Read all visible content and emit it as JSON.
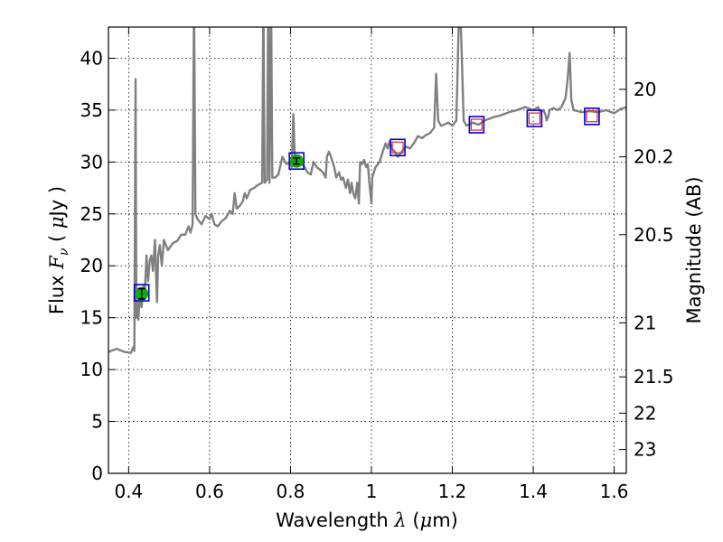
{
  "chart_data": {
    "type": "line",
    "title": "",
    "xlabel": "Wavelength  λ (μm)",
    "xlabel_parts": {
      "prefix": "Wavelength  ",
      "symbol": "λ",
      "suffix": " (",
      "mu": "μ",
      "unit": "m)"
    },
    "ylabel": "Flux  Fν  ( μJy )",
    "ylabel_parts": {
      "prefix": "Flux  ",
      "symbol": "F",
      "sub": "ν",
      "open": "  ( ",
      "mu": "μ",
      "unit": "Jy )"
    },
    "y2label": "Magnitude (AB)",
    "xlim": [
      0.35,
      1.63
    ],
    "ylim": [
      0,
      43
    ],
    "xticks": [
      0.4,
      0.6,
      0.8,
      1.0,
      1.2,
      1.4,
      1.6
    ],
    "xtick_labels": [
      "0.4",
      "0.6",
      "0.8",
      "1",
      "1.2",
      "1.4",
      "1.6"
    ],
    "yticks": [
      0,
      5,
      10,
      15,
      20,
      25,
      30,
      35,
      40
    ],
    "ytick_labels": [
      "0",
      "5",
      "10",
      "15",
      "20",
      "25",
      "30",
      "35",
      "40"
    ],
    "y2ticks": [
      {
        "label": "20",
        "flux": 37.0
      },
      {
        "label": "20.2",
        "flux": 30.5
      },
      {
        "label": "20.5",
        "flux": 23.0
      },
      {
        "label": "21",
        "flux": 14.5
      },
      {
        "label": "21.5",
        "flux": 9.3
      },
      {
        "label": "22",
        "flux": 5.8
      },
      {
        "label": "23",
        "flux": 2.3
      }
    ],
    "grid": true,
    "colors": {
      "spectrum": "#808080",
      "observed_fill": "#11aa11",
      "square_outer": "#0000dd",
      "square_inner": "#dd2233",
      "errorbar": "#000000"
    },
    "series": [
      {
        "values": [
          [
            0.35,
            11.7
          ],
          [
            0.37,
            12.0
          ],
          [
            0.39,
            11.7
          ],
          [
            0.405,
            11.6
          ],
          [
            0.412,
            12.2
          ],
          [
            0.414,
            11.8
          ],
          [
            0.417,
            38.0
          ],
          [
            0.419,
            15.0
          ],
          [
            0.421,
            16.5
          ],
          [
            0.424,
            14.8
          ],
          [
            0.428,
            17.5
          ],
          [
            0.432,
            16.0
          ],
          [
            0.436,
            18.0
          ],
          [
            0.44,
            17.5
          ],
          [
            0.444,
            21.0
          ],
          [
            0.448,
            18.5
          ],
          [
            0.452,
            20.5
          ],
          [
            0.456,
            21.0
          ],
          [
            0.46,
            19.5
          ],
          [
            0.465,
            22.5
          ],
          [
            0.47,
            16.5
          ],
          [
            0.473,
            21.0
          ],
          [
            0.477,
            22.0
          ],
          [
            0.482,
            20.0
          ],
          [
            0.487,
            22.5
          ],
          [
            0.492,
            22.0
          ],
          [
            0.497,
            21.5
          ],
          [
            0.502,
            21.8
          ],
          [
            0.51,
            22.2
          ],
          [
            0.52,
            22.4
          ],
          [
            0.53,
            23.0
          ],
          [
            0.54,
            23.0
          ],
          [
            0.548,
            23.8
          ],
          [
            0.553,
            23.2
          ],
          [
            0.558,
            24.0
          ],
          [
            0.5615,
            46.0
          ],
          [
            0.565,
            25.0
          ],
          [
            0.57,
            24.5
          ],
          [
            0.58,
            24.0
          ],
          [
            0.59,
            24.8
          ],
          [
            0.6,
            24.5
          ],
          [
            0.605,
            25.0
          ],
          [
            0.612,
            24.0
          ],
          [
            0.62,
            23.8
          ],
          [
            0.63,
            24.3
          ],
          [
            0.64,
            24.6
          ],
          [
            0.65,
            25.3
          ],
          [
            0.657,
            25.0
          ],
          [
            0.662,
            27.0
          ],
          [
            0.667,
            25.5
          ],
          [
            0.675,
            25.8
          ],
          [
            0.682,
            26.2
          ],
          [
            0.687,
            27.0
          ],
          [
            0.692,
            26.5
          ],
          [
            0.7,
            27.3
          ],
          [
            0.71,
            27.5
          ],
          [
            0.72,
            27.8
          ],
          [
            0.73,
            28.0
          ],
          [
            0.733,
            46.0
          ],
          [
            0.736,
            28.0
          ],
          [
            0.742,
            28.3
          ],
          [
            0.745,
            46.0
          ],
          [
            0.748,
            28.0
          ],
          [
            0.752,
            46.0
          ],
          [
            0.755,
            28.5
          ],
          [
            0.762,
            28.5
          ],
          [
            0.77,
            28.8
          ],
          [
            0.78,
            30.5
          ],
          [
            0.79,
            29.8
          ],
          [
            0.798,
            30.0
          ],
          [
            0.803,
            29.5
          ],
          [
            0.807,
            34.6
          ],
          [
            0.811,
            30.0
          ],
          [
            0.815,
            30.5
          ],
          [
            0.822,
            30.2
          ],
          [
            0.828,
            29.8
          ],
          [
            0.835,
            29.5
          ],
          [
            0.842,
            29.0
          ],
          [
            0.85,
            28.8
          ],
          [
            0.857,
            30.0
          ],
          [
            0.865,
            29.5
          ],
          [
            0.872,
            29.3
          ],
          [
            0.88,
            29.0
          ],
          [
            0.887,
            28.5
          ],
          [
            0.89,
            30.5
          ],
          [
            0.895,
            31.0
          ],
          [
            0.9,
            30.5
          ],
          [
            0.908,
            29.5
          ],
          [
            0.913,
            28.5
          ],
          [
            0.92,
            29.0
          ],
          [
            0.925,
            28.3
          ],
          [
            0.93,
            28.5
          ],
          [
            0.937,
            27.5
          ],
          [
            0.942,
            28.3
          ],
          [
            0.947,
            27.0
          ],
          [
            0.951,
            28.0
          ],
          [
            0.955,
            27.0
          ],
          [
            0.96,
            26.5
          ],
          [
            0.965,
            28.0
          ],
          [
            0.969,
            26.0
          ],
          [
            0.972,
            30.0
          ],
          [
            0.977,
            29.8
          ],
          [
            0.982,
            30.2
          ],
          [
            0.987,
            29.5
          ],
          [
            0.991,
            29.8
          ],
          [
            0.995,
            28.0
          ],
          [
            1.0,
            26.0
          ],
          [
            1.002,
            28.5
          ],
          [
            1.01,
            29.5
          ],
          [
            1.02,
            30.0
          ],
          [
            1.028,
            31.0
          ],
          [
            1.035,
            31.8
          ],
          [
            1.04,
            31.3
          ],
          [
            1.045,
            32.0
          ],
          [
            1.05,
            31.3
          ],
          [
            1.058,
            31.0
          ],
          [
            1.065,
            30.5
          ],
          [
            1.075,
            31.0
          ],
          [
            1.085,
            31.5
          ],
          [
            1.095,
            31.3
          ],
          [
            1.105,
            31.8
          ],
          [
            1.115,
            32.5
          ],
          [
            1.125,
            32.3
          ],
          [
            1.135,
            32.6
          ],
          [
            1.145,
            32.8
          ],
          [
            1.155,
            33.3
          ],
          [
            1.16,
            38.5
          ],
          [
            1.165,
            34.0
          ],
          [
            1.172,
            33.5
          ],
          [
            1.18,
            33.6
          ],
          [
            1.19,
            33.8
          ],
          [
            1.2,
            33.5
          ],
          [
            1.21,
            34.0
          ],
          [
            1.215,
            42.0
          ],
          [
            1.218,
            46.0
          ],
          [
            1.222,
            42.0
          ],
          [
            1.228,
            34.0
          ],
          [
            1.235,
            33.5
          ],
          [
            1.25,
            33.8
          ],
          [
            1.265,
            33.6
          ],
          [
            1.28,
            34.0
          ],
          [
            1.3,
            34.3
          ],
          [
            1.32,
            34.5
          ],
          [
            1.34,
            34.8
          ],
          [
            1.36,
            35.0
          ],
          [
            1.38,
            35.3
          ],
          [
            1.4,
            35.0
          ],
          [
            1.412,
            35.3
          ],
          [
            1.418,
            34.8
          ],
          [
            1.425,
            35.0
          ],
          [
            1.43,
            34.6
          ],
          [
            1.433,
            34.0
          ],
          [
            1.438,
            34.5
          ],
          [
            1.44,
            35.0
          ],
          [
            1.45,
            35.2
          ],
          [
            1.46,
            35.0
          ],
          [
            1.47,
            35.3
          ],
          [
            1.48,
            36.2
          ],
          [
            1.485,
            38.0
          ],
          [
            1.49,
            40.5
          ],
          [
            1.494,
            36.0
          ],
          [
            1.5,
            35.0
          ],
          [
            1.52,
            34.8
          ],
          [
            1.54,
            34.9
          ],
          [
            1.56,
            34.8
          ],
          [
            1.58,
            35.0
          ],
          [
            1.6,
            34.7
          ],
          [
            1.615,
            35.1
          ],
          [
            1.63,
            35.3
          ]
        ]
      }
    ],
    "photometry_observed": [
      {
        "x": 0.432,
        "y": 17.3,
        "yerr": 0.5
      },
      {
        "x": 0.815,
        "y": 30.1,
        "yerr": 0.3
      }
    ],
    "photometry_model": [
      {
        "x": 0.432,
        "y": 17.4,
        "filled": true
      },
      {
        "x": 0.815,
        "y": 30.1,
        "filled": true
      },
      {
        "x": 1.065,
        "y": 31.4,
        "filled": false
      },
      {
        "x": 1.26,
        "y": 33.6,
        "filled": false
      },
      {
        "x": 1.403,
        "y": 34.2,
        "filled": false
      },
      {
        "x": 1.545,
        "y": 34.4,
        "filled": false
      }
    ]
  }
}
